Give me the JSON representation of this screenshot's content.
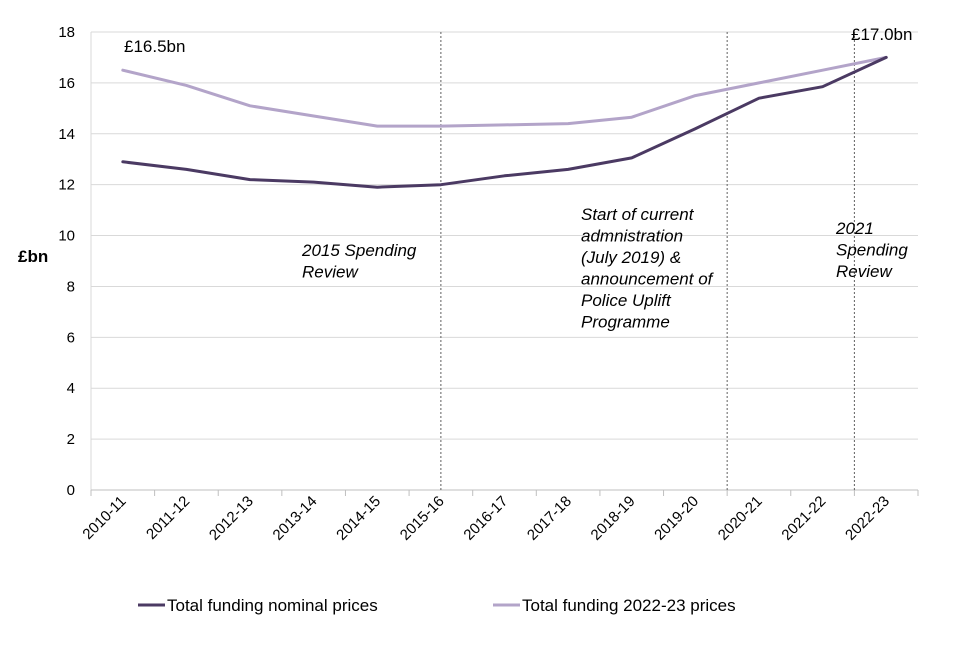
{
  "chart_data": {
    "type": "line",
    "categories": [
      "2010-11",
      "2011-12",
      "2012-13",
      "2013-14",
      "2014-15",
      "2015-16",
      "2016-17",
      "2017-18",
      "2018-19",
      "2019-20",
      "2020-21",
      "2021-22",
      "2022-23"
    ],
    "series": [
      {
        "name": "Total funding nominal prices",
        "color": "#4b3a63",
        "values": [
          12.9,
          12.6,
          12.2,
          12.1,
          11.9,
          12.0,
          12.35,
          12.6,
          13.05,
          14.2,
          15.4,
          15.85,
          17.0
        ]
      },
      {
        "name": "Total funding 2022-23 prices",
        "color": "#b3a4c9",
        "values": [
          16.5,
          15.9,
          15.1,
          14.7,
          14.3,
          14.3,
          14.35,
          14.4,
          14.65,
          15.5,
          16.0,
          16.5,
          17.0
        ]
      }
    ],
    "ylabel": "£bn",
    "xlabel": "",
    "ylim": [
      0,
      18
    ],
    "yticks": [
      0,
      2,
      4,
      6,
      8,
      10,
      12,
      14,
      16,
      18
    ],
    "grid": true,
    "legend_position": "bottom",
    "start_label": "£16.5bn",
    "end_label": "£17.0bn",
    "annotations": [
      {
        "category": "2015-16",
        "lines": [
          "2015 Spending",
          "Review"
        ]
      },
      {
        "category": "2019-20",
        "lines": [
          "Start of current",
          "admnistration",
          "(July 2019) &",
          "announcement of",
          "Police Uplift",
          "Programme"
        ]
      },
      {
        "category": "2021-22",
        "lines": [
          "2021",
          "Spending",
          "Review"
        ]
      }
    ]
  }
}
